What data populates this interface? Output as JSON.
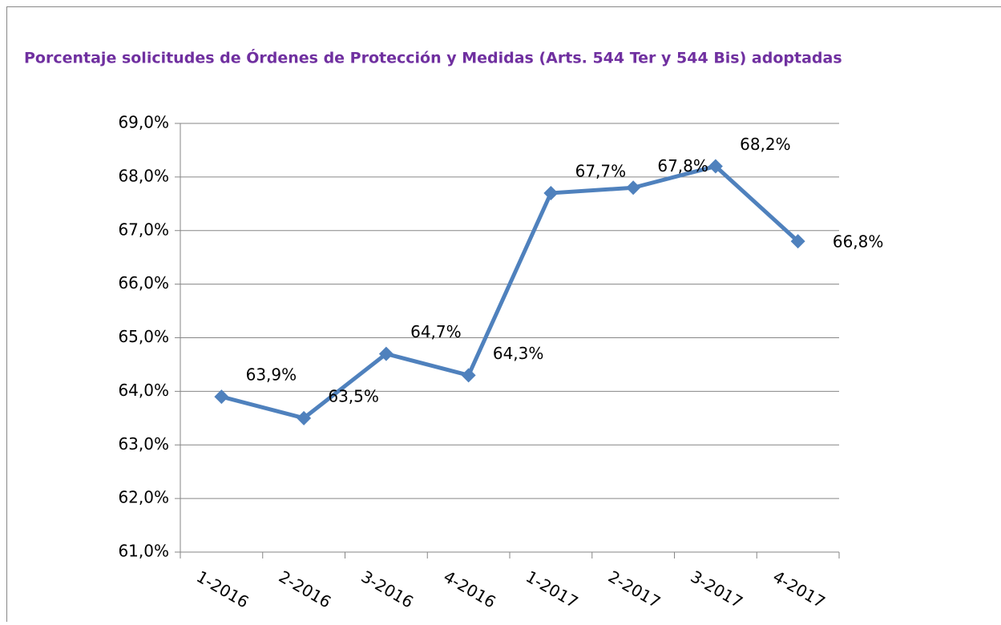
{
  "chart_data": {
    "type": "line",
    "title": "Porcentaje solicitudes de Órdenes de Protección y Medidas (Arts. 544 Ter y 544 Bis) adoptadas",
    "categories": [
      "1-2016",
      "2-2016",
      "3-2016",
      "4-2016",
      "1-2017",
      "2-2017",
      "3-2017",
      "4-2017"
    ],
    "series": [
      {
        "name": "Porcentaje",
        "color": "#4f81bd",
        "values": [
          63.9,
          63.5,
          64.7,
          64.3,
          67.7,
          67.8,
          68.2,
          66.8
        ],
        "value_labels": [
          "63,9%",
          "63,5%",
          "64,7%",
          "64,3%",
          "67,7%",
          "67,8%",
          "68,2%",
          "66,8%"
        ]
      }
    ],
    "ylim": [
      61,
      69
    ],
    "yticks": [
      {
        "value": 61,
        "label": "61,0%"
      },
      {
        "value": 62,
        "label": "62,0%"
      },
      {
        "value": 63,
        "label": "63,0%"
      },
      {
        "value": 64,
        "label": "64,0%"
      },
      {
        "value": 65,
        "label": "65,0%"
      },
      {
        "value": 66,
        "label": "66,0%"
      },
      {
        "value": 67,
        "label": "67,0%"
      },
      {
        "value": 68,
        "label": "68,0%"
      },
      {
        "value": 69,
        "label": "69,0%"
      }
    ],
    "grid": true
  }
}
